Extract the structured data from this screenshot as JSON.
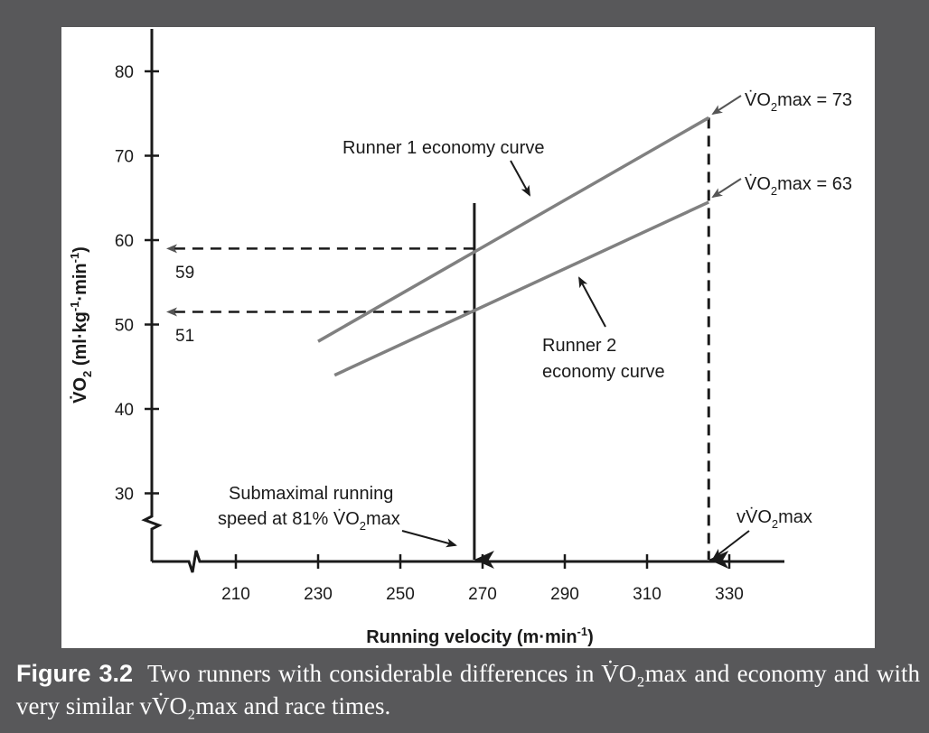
{
  "chart_data": {
    "type": "line",
    "xlabel": "Running velocity (m·min⁻¹)",
    "ylabel": "V̇O₂ (ml·kg⁻¹·min⁻¹)",
    "xlim": [
      200,
      345
    ],
    "ylim": [
      20,
      85
    ],
    "x_ticks": [
      "210",
      "230",
      "250",
      "270",
      "290",
      "310",
      "330"
    ],
    "y_ticks": [
      "30",
      "40",
      "50",
      "60",
      "70",
      "80"
    ],
    "series": [
      {
        "name": "Runner 1 economy curve",
        "x": [
          230,
          325
        ],
        "y": [
          48,
          74.5
        ],
        "color": "#808080"
      },
      {
        "name": "Runner 2 economy curve",
        "x": [
          234,
          325
        ],
        "y": [
          44,
          64.5
        ],
        "color": "#808080"
      }
    ],
    "submax_velocity": 268,
    "vvo2max": 325,
    "reference_values": [
      {
        "label": "59",
        "y": 59
      },
      {
        "label": "51",
        "y": 51.5
      }
    ],
    "grid": false
  },
  "labels": {
    "runner1": "Runner 1 economy curve",
    "runner2_line1": "Runner 2",
    "runner2_line2": "economy curve",
    "vo2max73": "VO2max = 73",
    "vo2max63": "VO2max = 63",
    "submax_line1": "Submaximal running",
    "submax_line2": "speed at 81% VO2max",
    "vvo2max": "vVO2max",
    "ref59": "59",
    "ref51": "51"
  },
  "caption": {
    "label": "Figure 3.2",
    "text": "Two runners with considerable differences in V̇O₂max and economy and with very similar vV̇O₂max and race times."
  }
}
